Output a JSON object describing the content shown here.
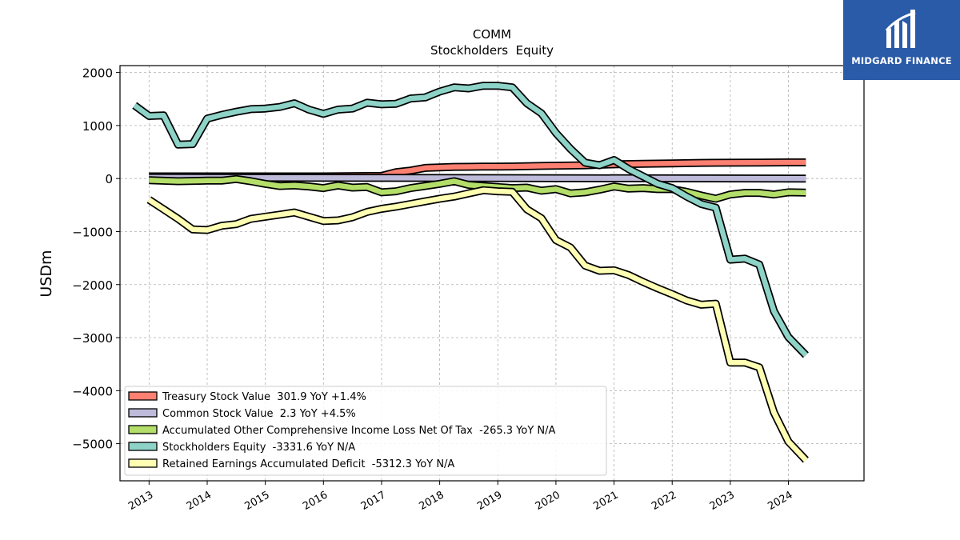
{
  "brand": {
    "name": "MIDGARD FINANCE",
    "bg_color": "#2a5ba8"
  },
  "chart_data": {
    "type": "line",
    "title": "COMM",
    "subtitle": "Stockholders  Equity",
    "ylabel": "USDm",
    "xlabel": "",
    "xlim": [
      2012.5,
      2025.3
    ],
    "ylim": [
      -5700,
      2130
    ],
    "grid": true,
    "legend_position": "lower-left",
    "x_ticks": [
      2013,
      2014,
      2015,
      2016,
      2017,
      2018,
      2019,
      2020,
      2021,
      2022,
      2023,
      2024
    ],
    "x_tick_labels": [
      "2013",
      "2014",
      "2015",
      "2016",
      "2017",
      "2018",
      "2019",
      "2020",
      "2021",
      "2022",
      "2023",
      "2024"
    ],
    "y_ticks": [
      2000,
      1000,
      0,
      -1000,
      -2000,
      -3000,
      -4000,
      -5000
    ],
    "y_tick_labels": [
      "2000",
      "1000",
      "0",
      "−1000",
      "−2000",
      "−3000",
      "−4000",
      "−5000"
    ],
    "series": [
      {
        "name": "Treasury Stock Value",
        "legend_label": "Treasury Stock Value  301.9 YoY +1.4%",
        "color": "#fb8072",
        "x": [
          2013.0,
          2016.0,
          2017.0,
          2017.25,
          2017.5,
          2017.75,
          2018.0,
          2018.25,
          2018.5,
          2018.75,
          2019.0,
          2019.25,
          2019.5,
          2019.75,
          2020.0,
          2020.5,
          2021.0,
          2021.5,
          2022.0,
          2022.5,
          2023.0,
          2023.5,
          2024.0,
          2024.3
        ],
        "y": [
          40,
          40,
          50,
          120,
          150,
          200,
          210,
          220,
          222,
          224,
          226,
          228,
          232,
          238,
          242,
          250,
          268,
          278,
          285,
          295,
          298,
          302,
          305,
          305
        ]
      },
      {
        "name": "Common Stock Value",
        "legend_label": "Common Stock Value  2.3 YoY +4.5%",
        "color": "#bebada",
        "x": [
          2013.0,
          2024.3
        ],
        "y": [
          20,
          0
        ]
      },
      {
        "name": "Accumulated Other Comprehensive Income Loss Net Of Tax",
        "legend_label": "Accumulated Other Comprehensive Income Loss Net Of Tax  -265.3 YoY N/A",
        "color": "#b3de69",
        "x": [
          2013.0,
          2013.5,
          2014.0,
          2014.25,
          2014.5,
          2014.75,
          2015.0,
          2015.25,
          2015.5,
          2015.75,
          2016.0,
          2016.25,
          2016.5,
          2016.75,
          2017.0,
          2017.25,
          2017.5,
          2017.75,
          2018.0,
          2018.25,
          2018.5,
          2018.75,
          2019.0,
          2019.25,
          2019.5,
          2019.75,
          2020.0,
          2020.25,
          2020.5,
          2020.75,
          2021.0,
          2021.25,
          2021.5,
          2021.75,
          2022.0,
          2022.25,
          2022.5,
          2022.75,
          2023.0,
          2023.25,
          2023.5,
          2023.75,
          2024.0,
          2024.3
        ],
        "y": [
          -30,
          -50,
          -40,
          -40,
          -10,
          -50,
          -100,
          -140,
          -130,
          -150,
          -180,
          -130,
          -170,
          -160,
          -260,
          -240,
          -180,
          -140,
          -100,
          -50,
          -120,
          -140,
          -160,
          -180,
          -170,
          -230,
          -200,
          -280,
          -260,
          -210,
          -150,
          -190,
          -180,
          -200,
          -200,
          -250,
          -320,
          -380,
          -300,
          -270,
          -270,
          -300,
          -260,
          -265
        ]
      },
      {
        "name": "Stockholders Equity",
        "legend_label": "Stockholders Equity  -3331.6 YoY N/A",
        "color": "#8dd3c7",
        "x": [
          2012.75,
          2013.0,
          2013.25,
          2013.5,
          2013.75,
          2014.0,
          2014.25,
          2014.5,
          2014.75,
          2015.0,
          2015.25,
          2015.5,
          2015.75,
          2016.0,
          2016.25,
          2016.5,
          2016.75,
          2017.0,
          2017.25,
          2017.5,
          2017.75,
          2018.0,
          2018.25,
          2018.5,
          2018.75,
          2019.0,
          2019.25,
          2019.5,
          2019.75,
          2020.0,
          2020.25,
          2020.5,
          2020.75,
          2021.0,
          2021.25,
          2021.5,
          2021.75,
          2022.0,
          2022.25,
          2022.5,
          2022.75,
          2023.0,
          2023.25,
          2023.5,
          2023.75,
          2024.0,
          2024.3
        ],
        "y": [
          1380,
          1180,
          1190,
          640,
          650,
          1130,
          1200,
          1260,
          1310,
          1320,
          1350,
          1420,
          1300,
          1220,
          1300,
          1320,
          1430,
          1400,
          1410,
          1510,
          1530,
          1640,
          1720,
          1700,
          1750,
          1750,
          1720,
          1420,
          1230,
          860,
          560,
          300,
          250,
          350,
          180,
          40,
          -100,
          -180,
          -340,
          -480,
          -550,
          -1530,
          -1510,
          -1620,
          -2500,
          -2990,
          -3330
        ]
      },
      {
        "name": "Retained Earnings Accumulated Deficit",
        "legend_label": "Retained Earnings Accumulated Deficit  -5312.3 YoY N/A",
        "color": "#ffffb3",
        "x": [
          2013.0,
          2013.25,
          2013.5,
          2013.75,
          2014.0,
          2014.25,
          2014.5,
          2014.75,
          2015.0,
          2015.25,
          2015.5,
          2015.75,
          2016.0,
          2016.25,
          2016.5,
          2016.75,
          2017.0,
          2017.25,
          2017.5,
          2017.75,
          2018.0,
          2018.25,
          2018.5,
          2018.75,
          2019.0,
          2019.25,
          2019.5,
          2019.75,
          2020.0,
          2020.25,
          2020.5,
          2020.75,
          2021.0,
          2021.25,
          2021.5,
          2021.75,
          2022.0,
          2022.25,
          2022.5,
          2022.75,
          2023.0,
          2023.25,
          2023.5,
          2023.75,
          2024.0,
          2024.3
        ],
        "y": [
          -400,
          -580,
          -760,
          -960,
          -970,
          -890,
          -860,
          -760,
          -720,
          -680,
          -640,
          -720,
          -800,
          -790,
          -730,
          -630,
          -570,
          -530,
          -480,
          -430,
          -380,
          -340,
          -280,
          -220,
          -240,
          -250,
          -580,
          -750,
          -1160,
          -1300,
          -1640,
          -1740,
          -1730,
          -1820,
          -1950,
          -2070,
          -2180,
          -2300,
          -2380,
          -2360,
          -3470,
          -3470,
          -3560,
          -4410,
          -4960,
          -5310
        ]
      }
    ]
  }
}
